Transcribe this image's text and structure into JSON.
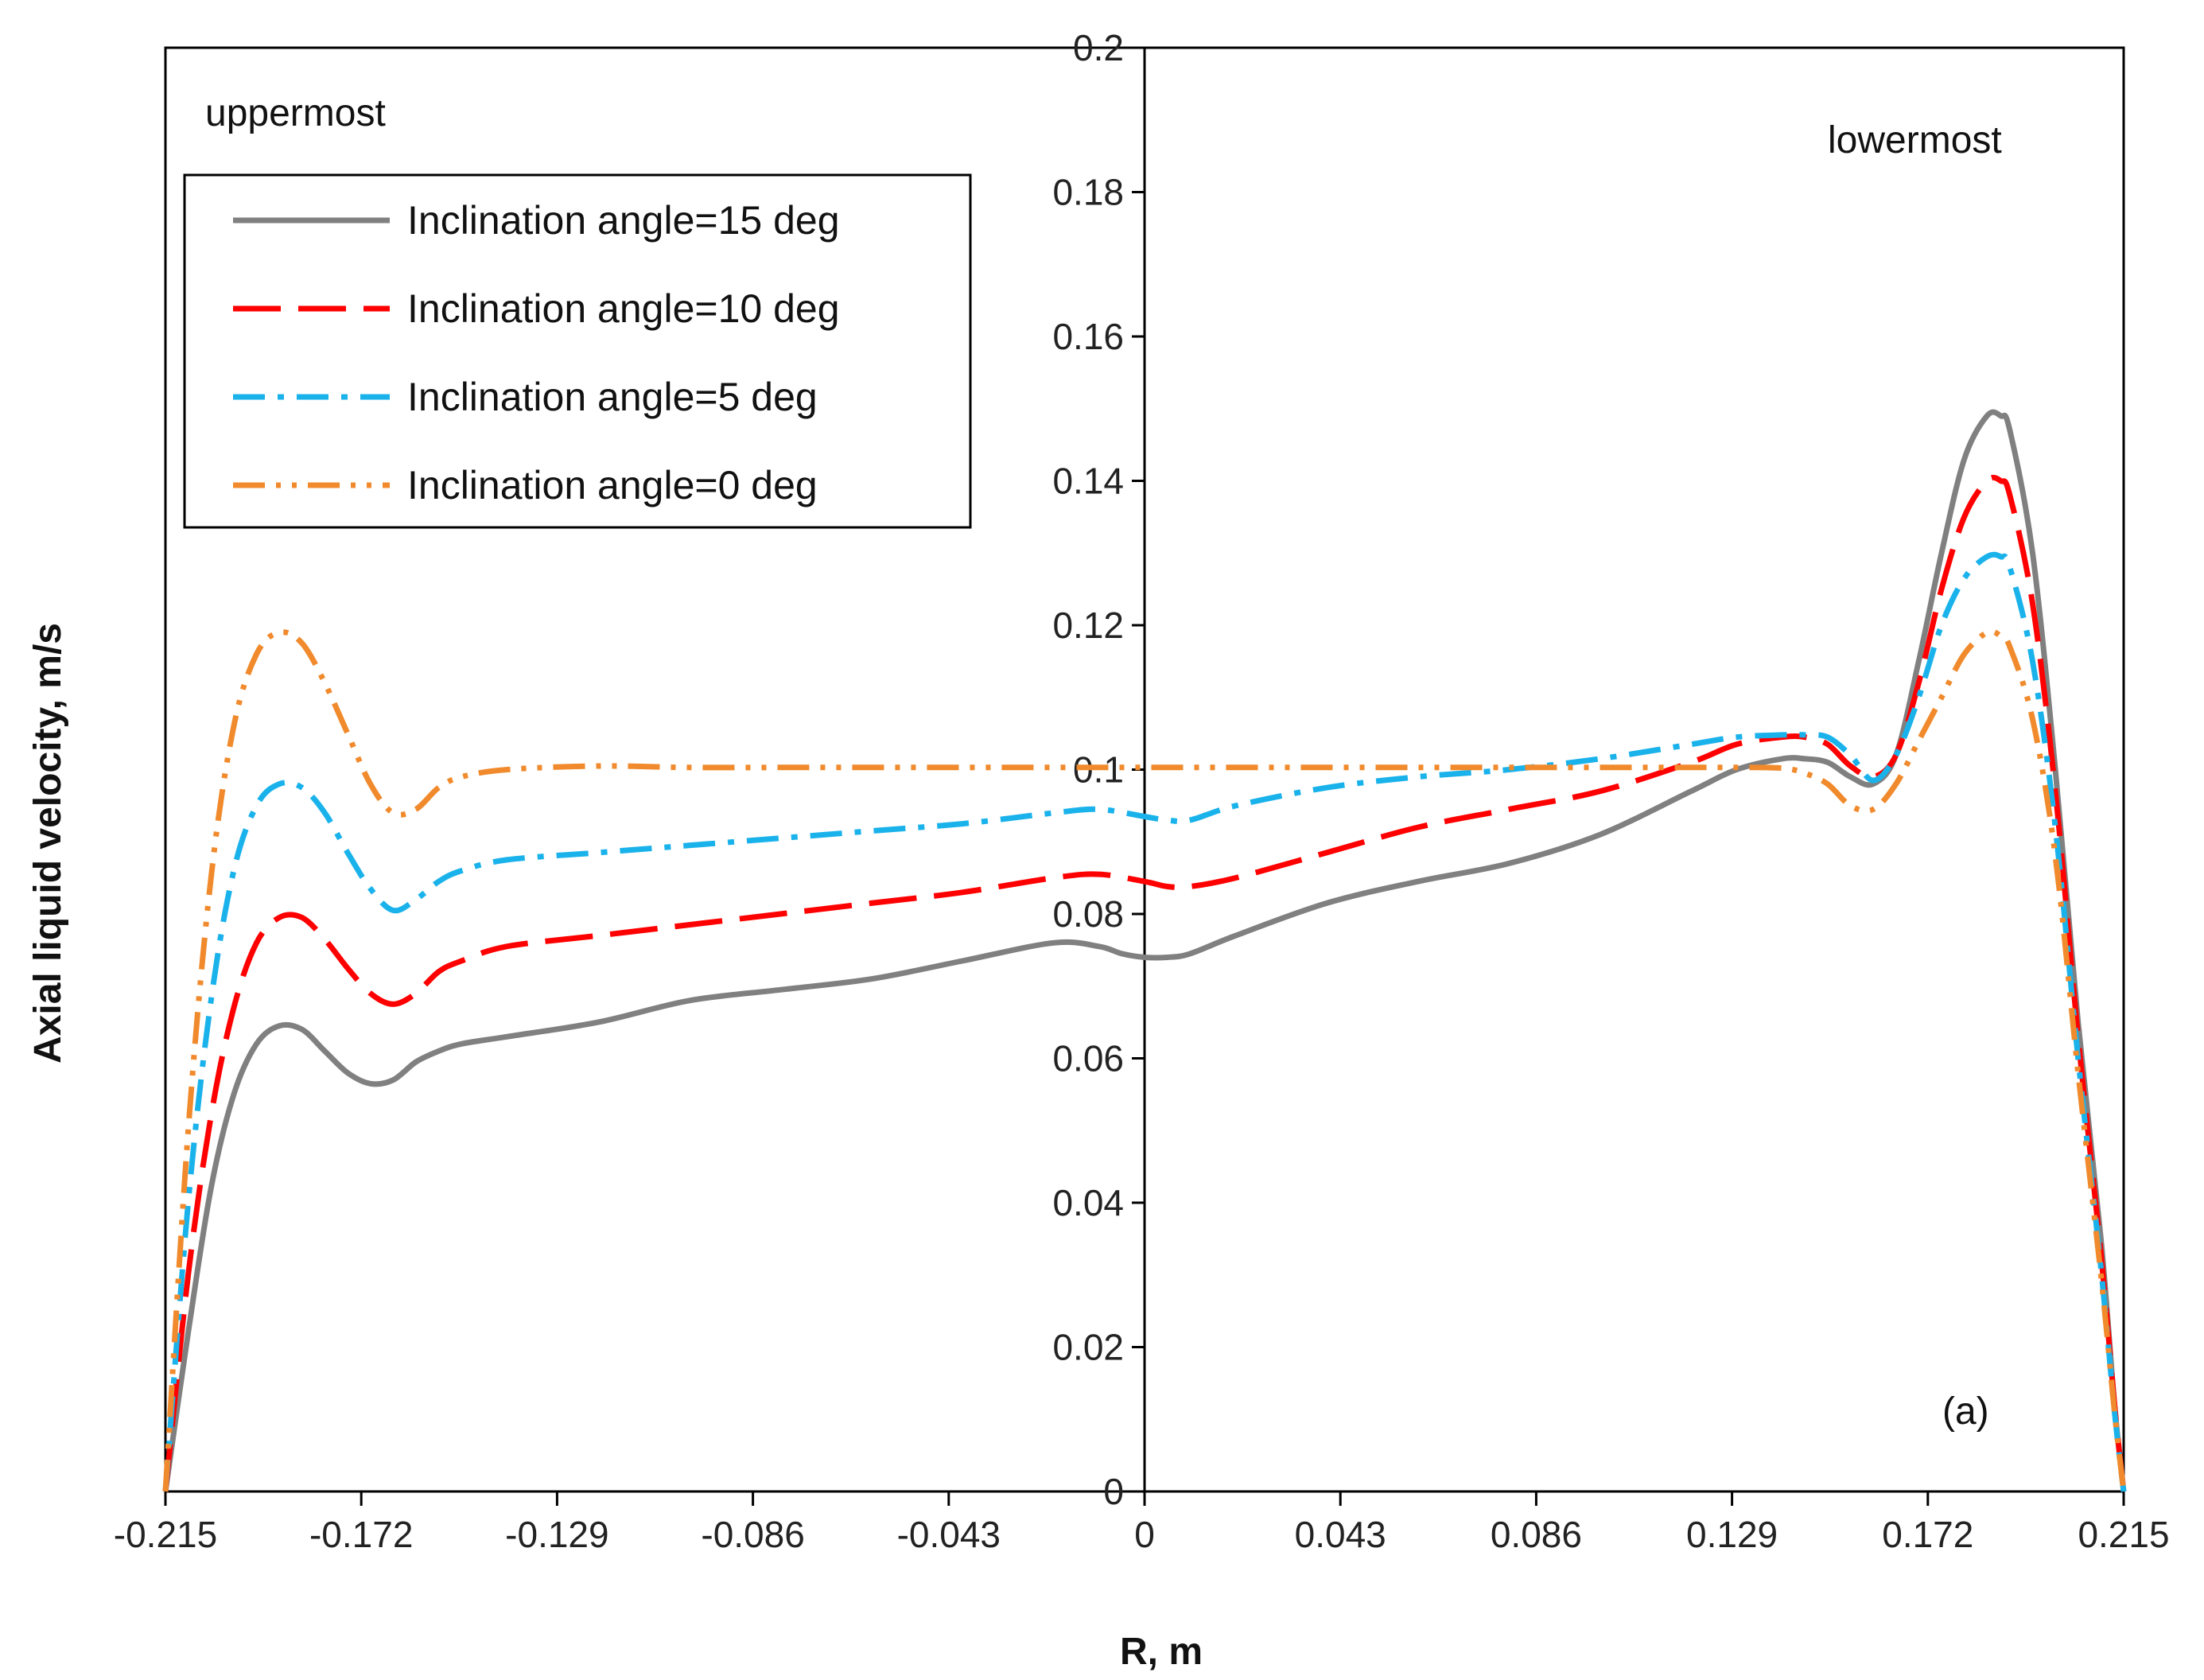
{
  "chart_data": {
    "type": "line",
    "xlabel": "R, m",
    "ylabel": "Axial liquid velocity, m/s",
    "xlim": [
      -0.215,
      0.215
    ],
    "ylim": [
      0,
      0.2
    ],
    "xticks": [
      "-0.215",
      "-0.172",
      "-0.129",
      "-0.086",
      "-0.043",
      "0",
      "0.043",
      "0.086",
      "0.129",
      "0.172",
      "0.215"
    ],
    "yticks": [
      "0",
      "0.02",
      "0.04",
      "0.06",
      "0.08",
      "0.1",
      "0.12",
      "0.14",
      "0.16",
      "0.18",
      "0.2"
    ],
    "grid": false,
    "legend_position": "top-left",
    "annotations": {
      "left": "uppermost",
      "right": "lowermost",
      "panel": "(a)"
    },
    "series": [
      {
        "name": "Inclination angle=15 deg",
        "color": "#808080",
        "dash": "solid",
        "x": [
          -0.215,
          -0.21,
          -0.205,
          -0.2,
          -0.195,
          -0.19,
          -0.185,
          -0.18,
          -0.175,
          -0.17,
          -0.165,
          -0.16,
          -0.155,
          -0.15,
          -0.14,
          -0.12,
          -0.1,
          -0.08,
          -0.06,
          -0.04,
          -0.02,
          -0.01,
          -0.005,
          0,
          0.005,
          0.01,
          0.02,
          0.04,
          0.06,
          0.08,
          0.1,
          0.12,
          0.13,
          0.14,
          0.145,
          0.15,
          0.155,
          0.16,
          0.165,
          0.17,
          0.175,
          0.18,
          0.185,
          0.188,
          0.19,
          0.195,
          0.2,
          0.205,
          0.21,
          0.213,
          0.215
        ],
        "y": [
          0,
          0.022,
          0.042,
          0.055,
          0.062,
          0.0645,
          0.064,
          0.061,
          0.058,
          0.0565,
          0.057,
          0.0595,
          0.061,
          0.062,
          0.063,
          0.065,
          0.068,
          0.0695,
          0.071,
          0.0735,
          0.076,
          0.0755,
          0.0745,
          0.074,
          0.074,
          0.0745,
          0.077,
          0.0815,
          0.0845,
          0.087,
          0.091,
          0.097,
          0.1,
          0.1015,
          0.1015,
          0.101,
          0.099,
          0.098,
          0.102,
          0.115,
          0.13,
          0.143,
          0.149,
          0.149,
          0.147,
          0.13,
          0.1,
          0.065,
          0.035,
          0.012,
          0
        ]
      },
      {
        "name": "Inclination angle=10 deg",
        "color": "#ff0000",
        "dash": "long-dash",
        "x": [
          -0.215,
          -0.21,
          -0.205,
          -0.2,
          -0.195,
          -0.19,
          -0.185,
          -0.18,
          -0.175,
          -0.17,
          -0.165,
          -0.16,
          -0.155,
          -0.15,
          -0.14,
          -0.12,
          -0.1,
          -0.08,
          -0.06,
          -0.04,
          -0.02,
          -0.01,
          0,
          0.005,
          0.01,
          0.02,
          0.04,
          0.06,
          0.08,
          0.1,
          0.12,
          0.13,
          0.14,
          0.145,
          0.15,
          0.155,
          0.16,
          0.165,
          0.17,
          0.175,
          0.18,
          0.185,
          0.188,
          0.19,
          0.195,
          0.2,
          0.205,
          0.21,
          0.213,
          0.215
        ],
        "y": [
          0,
          0.03,
          0.052,
          0.067,
          0.076,
          0.0795,
          0.0795,
          0.0765,
          0.0725,
          0.069,
          0.0675,
          0.069,
          0.072,
          0.0735,
          0.0755,
          0.077,
          0.0785,
          0.08,
          0.0815,
          0.083,
          0.085,
          0.0855,
          0.0845,
          0.0838,
          0.0838,
          0.085,
          0.0885,
          0.092,
          0.0945,
          0.097,
          0.101,
          0.1035,
          0.1045,
          0.1045,
          0.1035,
          0.1005,
          0.099,
          0.102,
          0.112,
          0.125,
          0.135,
          0.14,
          0.14,
          0.138,
          0.123,
          0.097,
          0.063,
          0.033,
          0.012,
          0
        ]
      },
      {
        "name": "Inclination angle=5 deg",
        "color": "#1ab2eb",
        "dash": "dash-dot",
        "x": [
          -0.215,
          -0.21,
          -0.205,
          -0.2,
          -0.195,
          -0.19,
          -0.185,
          -0.18,
          -0.175,
          -0.17,
          -0.165,
          -0.16,
          -0.155,
          -0.15,
          -0.14,
          -0.12,
          -0.1,
          -0.08,
          -0.06,
          -0.04,
          -0.02,
          -0.01,
          0,
          0.005,
          0.01,
          0.02,
          0.04,
          0.06,
          0.08,
          0.1,
          0.12,
          0.13,
          0.14,
          0.145,
          0.15,
          0.155,
          0.16,
          0.165,
          0.17,
          0.175,
          0.18,
          0.185,
          0.188,
          0.19,
          0.195,
          0.2,
          0.205,
          0.21,
          0.213,
          0.215
        ],
        "y": [
          0,
          0.04,
          0.068,
          0.086,
          0.095,
          0.098,
          0.0975,
          0.094,
          0.0885,
          0.0835,
          0.0805,
          0.082,
          0.0845,
          0.086,
          0.0875,
          0.0885,
          0.0895,
          0.0905,
          0.0915,
          0.0925,
          0.094,
          0.0945,
          0.0935,
          0.093,
          0.093,
          0.095,
          0.0975,
          0.099,
          0.1,
          0.1015,
          0.1035,
          0.1045,
          0.1048,
          0.1048,
          0.1045,
          0.102,
          0.0985,
          0.102,
          0.11,
          0.12,
          0.1265,
          0.1295,
          0.1295,
          0.128,
          0.115,
          0.092,
          0.06,
          0.031,
          0.011,
          0
        ]
      },
      {
        "name": "Inclination angle=0 deg",
        "color": "#f08a2c",
        "dash": "dash-dot-dot",
        "x": [
          -0.215,
          -0.21,
          -0.205,
          -0.2,
          -0.195,
          -0.19,
          -0.185,
          -0.18,
          -0.175,
          -0.17,
          -0.165,
          -0.16,
          -0.155,
          -0.15,
          -0.14,
          -0.12,
          -0.1,
          -0.08,
          -0.06,
          -0.04,
          -0.02,
          0,
          0.02,
          0.04,
          0.06,
          0.08,
          0.1,
          0.12,
          0.13,
          0.14,
          0.145,
          0.15,
          0.155,
          0.16,
          0.165,
          0.17,
          0.175,
          0.18,
          0.185,
          0.188,
          0.19,
          0.195,
          0.2,
          0.205,
          0.21,
          0.213,
          0.215
        ],
        "y": [
          0,
          0.05,
          0.085,
          0.106,
          0.116,
          0.119,
          0.1175,
          0.112,
          0.105,
          0.098,
          0.094,
          0.0945,
          0.0975,
          0.099,
          0.1,
          0.1005,
          0.1003,
          0.1003,
          0.1003,
          0.1003,
          0.1003,
          0.1003,
          0.1003,
          0.1003,
          0.1003,
          0.1003,
          0.1003,
          0.1003,
          0.1003,
          0.1002,
          0.0995,
          0.098,
          0.095,
          0.0945,
          0.098,
          0.104,
          0.11,
          0.116,
          0.119,
          0.1185,
          0.117,
          0.107,
          0.088,
          0.058,
          0.03,
          0.011,
          0
        ]
      }
    ]
  }
}
